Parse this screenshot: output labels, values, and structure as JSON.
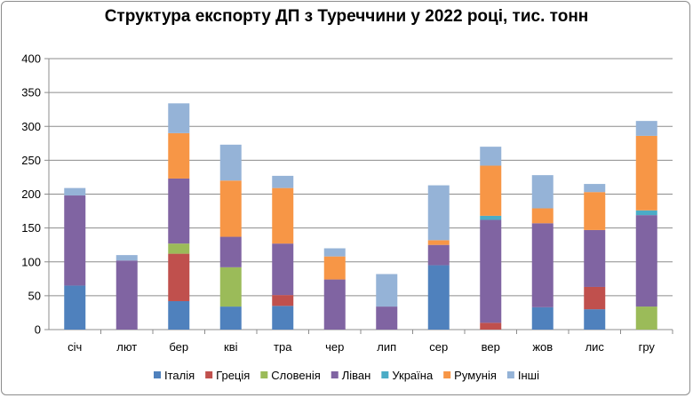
{
  "chart_data": {
    "type": "bar",
    "stacked": true,
    "title": "Структура експорту ДП з Туреччини у 2022 році, тис. тонн",
    "xlabel": "",
    "ylabel": "",
    "ylim": [
      0,
      400
    ],
    "yticks": [
      "0",
      "50",
      "100",
      "150",
      "200",
      "250",
      "300",
      "350",
      "400"
    ],
    "grid": true,
    "legend_position": "bottom",
    "categories": [
      "січ",
      "лют",
      "бер",
      "кві",
      "тра",
      "чер",
      "лип",
      "сер",
      "вер",
      "жов",
      "лис",
      "гру"
    ],
    "series": [
      {
        "name": "Італія",
        "color": "#4f81bd",
        "values": [
          65,
          0,
          42,
          34,
          35,
          0,
          0,
          95,
          0,
          33,
          30,
          0
        ]
      },
      {
        "name": "Греція",
        "color": "#c0504d",
        "values": [
          0,
          0,
          70,
          0,
          16,
          0,
          0,
          0,
          10,
          0,
          33,
          0
        ]
      },
      {
        "name": "Словенія",
        "color": "#9bbb59",
        "values": [
          0,
          0,
          15,
          58,
          0,
          0,
          0,
          0,
          0,
          0,
          0,
          34
        ]
      },
      {
        "name": "Ліван",
        "color": "#8064a2",
        "values": [
          133,
          102,
          96,
          45,
          76,
          74,
          34,
          30,
          152,
          124,
          84,
          135
        ]
      },
      {
        "name": "Україна",
        "color": "#4bacc6",
        "values": [
          0,
          0,
          0,
          0,
          0,
          0,
          0,
          0,
          6,
          0,
          0,
          7
        ]
      },
      {
        "name": "Румунія",
        "color": "#f79646",
        "values": [
          0,
          0,
          67,
          83,
          82,
          34,
          0,
          7,
          74,
          22,
          56,
          110
        ]
      },
      {
        "name": "Інші",
        "color": "#95b3d7",
        "values": [
          11,
          8,
          44,
          53,
          18,
          12,
          48,
          81,
          28,
          49,
          12,
          22
        ]
      }
    ]
  }
}
